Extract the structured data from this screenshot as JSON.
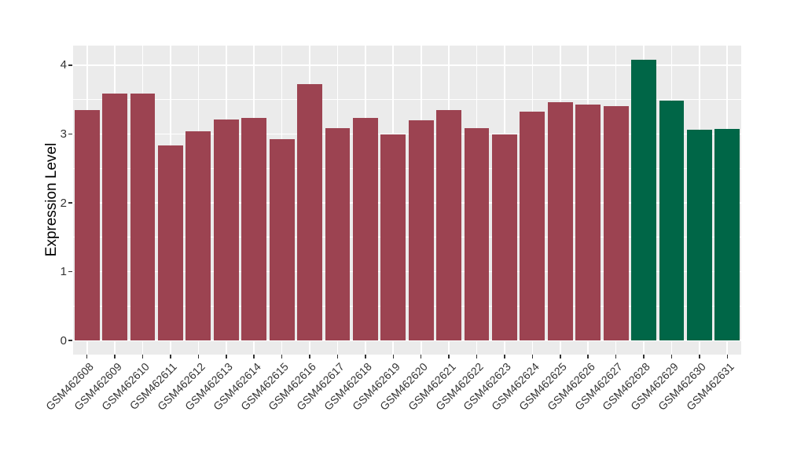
{
  "figure": {
    "background": "#FFFFFF",
    "panel_bg": "#EBEBEB",
    "grid_color": "#FFFFFF",
    "axis_text_color": "#333333",
    "axis_title_color": "#000000"
  },
  "chart_data": {
    "type": "bar",
    "title": "",
    "xlabel": "",
    "ylabel": "Expression Level",
    "categories": [
      "GSM462608",
      "GSM462609",
      "GSM462610",
      "GSM462611",
      "GSM462612",
      "GSM462613",
      "GSM462614",
      "GSM462615",
      "GSM462616",
      "GSM462617",
      "GSM462618",
      "GSM462619",
      "GSM462620",
      "GSM462621",
      "GSM462622",
      "GSM462623",
      "GSM462624",
      "GSM462625",
      "GSM462626",
      "GSM462627",
      "GSM462628",
      "GSM462629",
      "GSM462630",
      "GSM462631"
    ],
    "values": [
      3.35,
      3.59,
      3.59,
      2.83,
      3.04,
      3.21,
      3.23,
      2.92,
      3.73,
      3.08,
      3.23,
      2.99,
      3.2,
      3.35,
      3.09,
      2.99,
      3.32,
      3.46,
      3.43,
      3.41,
      4.08,
      3.49,
      3.06,
      3.07
    ],
    "bar_colors": [
      "#9C4351",
      "#9C4351",
      "#9C4351",
      "#9C4351",
      "#9C4351",
      "#9C4351",
      "#9C4351",
      "#9C4351",
      "#9C4351",
      "#9C4351",
      "#9C4351",
      "#9C4351",
      "#9C4351",
      "#9C4351",
      "#9C4351",
      "#9C4351",
      "#9C4351",
      "#9C4351",
      "#9C4351",
      "#9C4351",
      "#006647",
      "#006647",
      "#006647",
      "#006647"
    ],
    "group_colors": {
      "red": "#9C4351",
      "green": "#006647"
    },
    "yticks": [
      0,
      1,
      2,
      3,
      4
    ],
    "minor_gridlines": [
      0.5,
      1.5,
      2.5,
      3.5
    ],
    "ylim": [
      0,
      4.08
    ],
    "x_tick_rotation_deg": 45,
    "legend": "none",
    "grid": "on",
    "bar_width_fraction": 0.9
  }
}
